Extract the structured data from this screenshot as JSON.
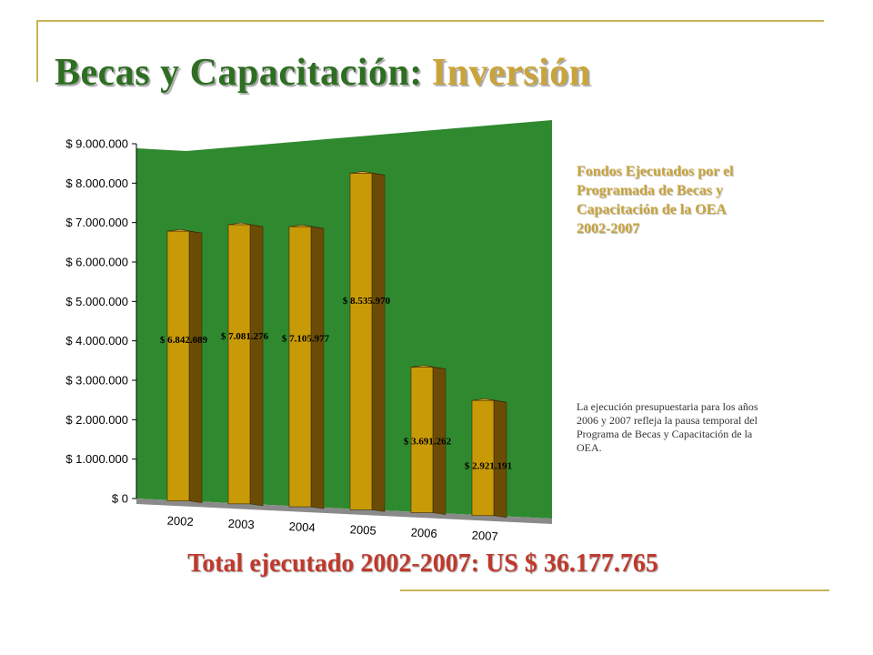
{
  "title": {
    "part1": "Becas y Capacitación:",
    "part2": "Inversión"
  },
  "side_title": [
    "Fondos Ejecutados por el",
    "Programada de Becas y",
    "Capacitación de la OEA",
    "2002-2007"
  ],
  "side_note": "La ejecución presupuestaria para los años 2006 y 2007 refleja la pausa temporal del Programa de Becas y Capacitación de la OEA.",
  "total": "Total ejecutado 2002-2007: US $ 36.177.765",
  "colors": {
    "wall": "#2f8a2f",
    "bar_front": "#c99a08",
    "bar_side": "#6b4c07",
    "floor": "#8a8a8a",
    "title_green": "#2e6e22",
    "title_gold": "#c9a43a",
    "total_red": "#c0392b"
  },
  "chart_data": {
    "type": "bar",
    "style": "3d",
    "categories": [
      "2002",
      "2003",
      "2004",
      "2005",
      "2006",
      "2007"
    ],
    "values": [
      6842089,
      7081276,
      7105977,
      8535970,
      3691262,
      2921191
    ],
    "data_labels": [
      "$ 6.842.089",
      "$ 7.081.276",
      "$ 7.105.977",
      "$ 8.535.970",
      "$ 3.691.262",
      "$ 2.921.191"
    ],
    "ylim": [
      0,
      9000000
    ],
    "yticks": [
      0,
      1000000,
      2000000,
      3000000,
      4000000,
      5000000,
      6000000,
      7000000,
      8000000,
      9000000
    ],
    "ytick_labels": [
      "$ 0",
      "$ 1.000.000",
      "$ 2.000.000",
      "$ 3.000.000",
      "$ 4.000.000",
      "$ 5.000.000",
      "$ 6.000.000",
      "$ 7.000.000",
      "$ 8.000.000",
      "$ 9.000.000"
    ],
    "grid": false,
    "legend": "none"
  }
}
